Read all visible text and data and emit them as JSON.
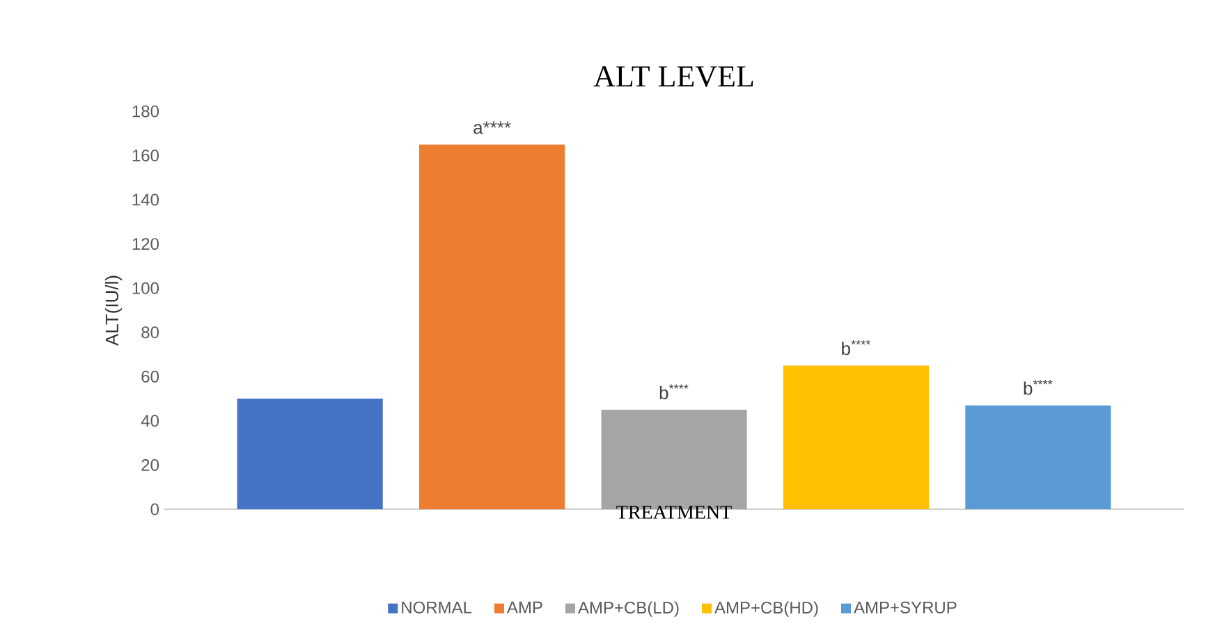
{
  "chart_data": {
    "type": "bar",
    "title": "ALT LEVEL",
    "xlabel": "TREATMENT",
    "ylabel": "ALT(IU/l)",
    "categories": [
      null
    ],
    "series": [
      {
        "name": "NORMAL",
        "color": "#4472c4",
        "values": [
          50
        ]
      },
      {
        "name": "AMP",
        "color": "#ed7d31",
        "values": [
          165
        ],
        "value_labels": [
          "a****"
        ]
      },
      {
        "name": "AMP+CB(LD)",
        "color": "#a5a5a5",
        "values": [
          45
        ],
        "value_labels": [
          "b$^{****}$"
        ]
      },
      {
        "name": "AMP+CB(HD)",
        "color": "#ffc000",
        "values": [
          65
        ],
        "value_labels": [
          "b$^{****}$"
        ]
      },
      {
        "name": "AMP+SYRUP",
        "color": "#5b9bd5",
        "values": [
          47
        ],
        "value_labels": [
          "b$^{****}$"
        ]
      }
    ],
    "ylim": [
      0,
      180
    ],
    "yticks": [
      0,
      20,
      40,
      60,
      80,
      100,
      120,
      140,
      160,
      180
    ],
    "grid": false,
    "legend": "bottom"
  }
}
